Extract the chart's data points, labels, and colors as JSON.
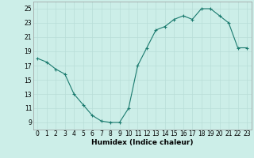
{
  "xlabel": "Humidex (Indice chaleur)",
  "ylabel": "",
  "x": [
    0,
    1,
    2,
    3,
    4,
    5,
    6,
    7,
    8,
    9,
    10,
    11,
    12,
    13,
    14,
    15,
    16,
    17,
    18,
    19,
    20,
    21,
    22,
    23
  ],
  "y": [
    18.0,
    17.5,
    16.5,
    15.8,
    13.0,
    11.5,
    10.0,
    9.2,
    9.0,
    9.0,
    11.0,
    17.0,
    19.5,
    22.0,
    22.5,
    23.5,
    24.0,
    23.5,
    25.0,
    25.0,
    24.0,
    23.0,
    19.5,
    19.5
  ],
  "xlim": [
    -0.5,
    23.5
  ],
  "ylim": [
    8.0,
    26.0
  ],
  "yticks": [
    9,
    11,
    13,
    15,
    17,
    19,
    21,
    23,
    25
  ],
  "xticks": [
    0,
    1,
    2,
    3,
    4,
    5,
    6,
    7,
    8,
    9,
    10,
    11,
    12,
    13,
    14,
    15,
    16,
    17,
    18,
    19,
    20,
    21,
    22,
    23
  ],
  "line_color": "#1a7a6e",
  "marker": "+",
  "bg_color": "#cceee8",
  "grid_color": "#b8ddd8",
  "xlabel_fontsize": 6.5,
  "tick_fontsize": 5.5
}
